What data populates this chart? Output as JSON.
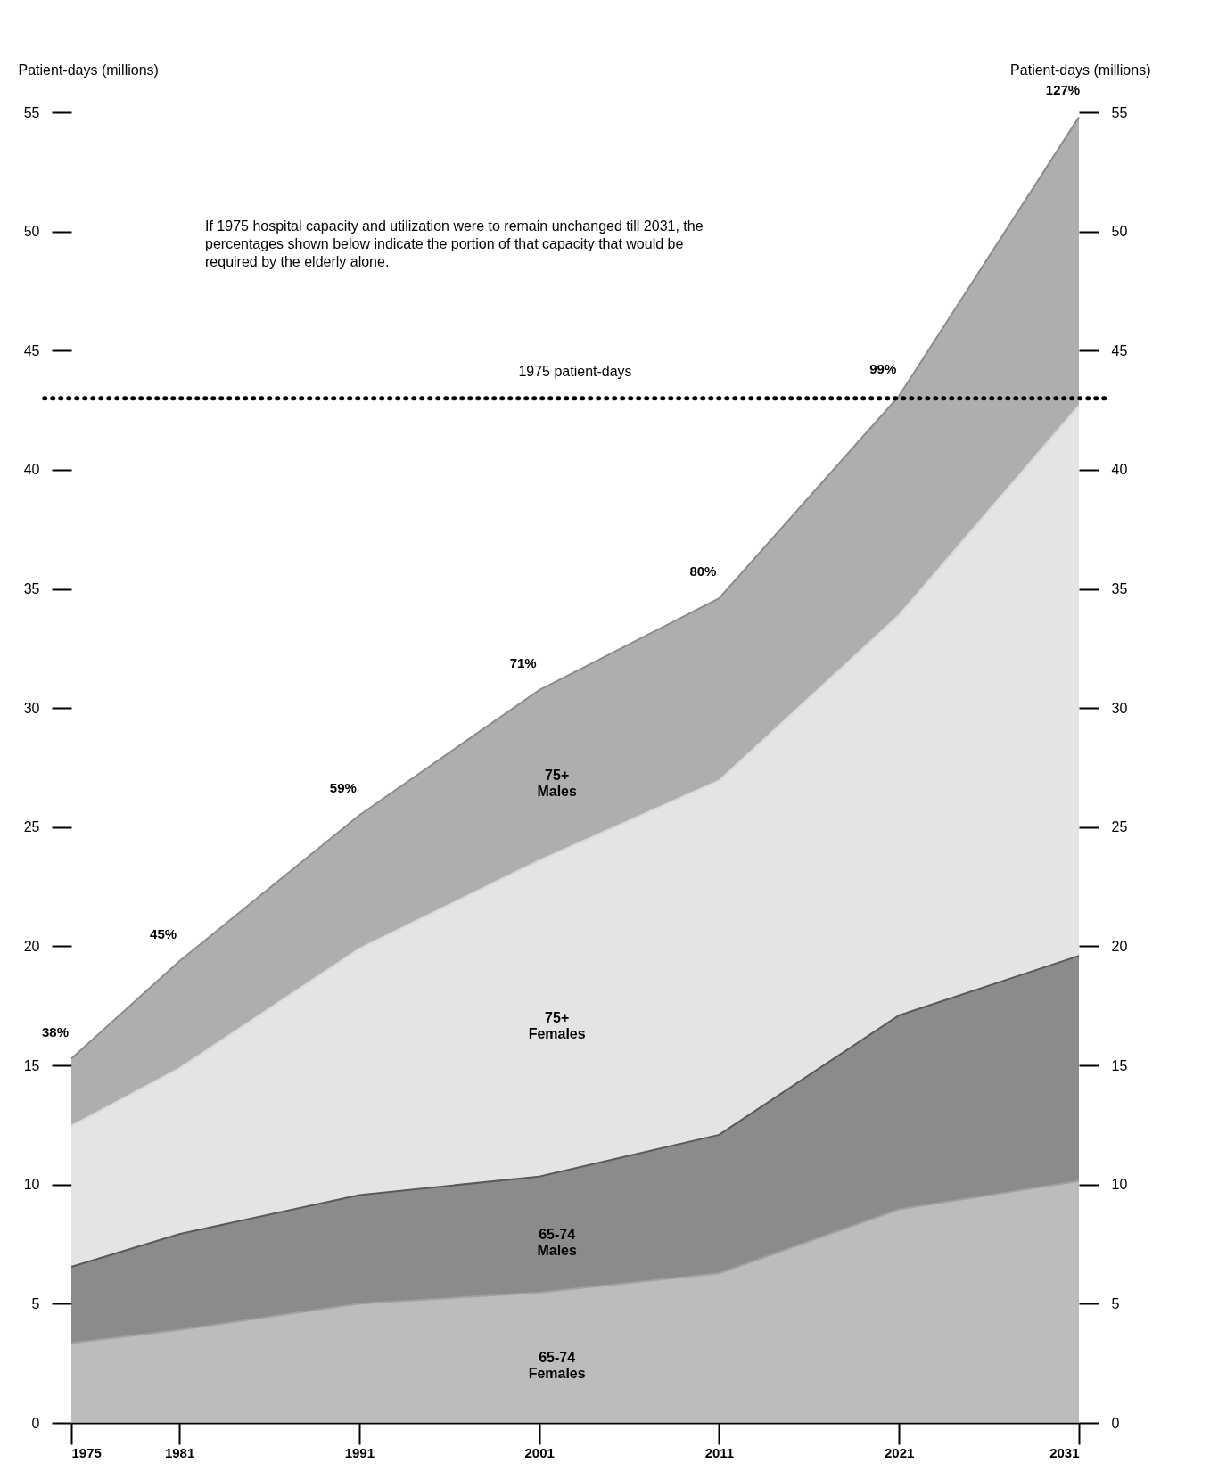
{
  "chart_data": {
    "type": "area",
    "stacked": true,
    "x": [
      1975,
      1981,
      1991,
      2001,
      2011,
      2021,
      2031
    ],
    "series": [
      {
        "name": "65-74 Females",
        "color": "#a0a0a0",
        "values": [
          3.35,
          3.9,
          5.0,
          5.47,
          6.28,
          8.96,
          10.15
        ]
      },
      {
        "name": "65-74 Males",
        "color": "#5a5a5a",
        "values": [
          3.2,
          4.02,
          4.56,
          4.87,
          5.81,
          8.14,
          9.45
        ]
      },
      {
        "name": "75+ Females",
        "color": "#d8d8d8",
        "values": [
          5.91,
          6.96,
          10.34,
          13.26,
          14.87,
          16.8,
          23.1
        ]
      },
      {
        "name": "75+ Males",
        "color": "#8c8c8c",
        "values": [
          2.82,
          4.49,
          5.6,
          7.15,
          7.64,
          9.2,
          12.1
        ]
      }
    ],
    "xlim": [
      1975,
      2031
    ],
    "xticks": [
      1975,
      1981,
      1991,
      2001,
      2011,
      2021,
      2031
    ],
    "ylim": [
      0,
      55
    ],
    "yticks": [
      0,
      5,
      10,
      15,
      20,
      25,
      30,
      35,
      40,
      45,
      50,
      55
    ],
    "y2lim": [
      0,
      55
    ],
    "y2ticks": [
      0,
      5,
      10,
      15,
      20,
      25,
      30,
      35,
      40,
      45,
      50,
      55
    ],
    "ylabel": "Patient-days (millions)",
    "y2label": "Patient-days (millions)",
    "ref_lines": [
      {
        "axis": "y",
        "value": 43,
        "label": "1975 patient-days",
        "line_style": "dotted"
      }
    ],
    "annotations": [
      "If 1975 hospital capacity and utilization were to remain unchanged till 2031, the percentages shown below indicate the portion of that capacity that would be required by the elderly alone.",
      {
        "text": "38%",
        "x": 1975,
        "y": 15.28
      },
      {
        "text": "45%",
        "x": 1981,
        "y": 19.37
      },
      {
        "text": "59%",
        "x": 1991,
        "y": 25.5
      },
      {
        "text": "71%",
        "x": 2001,
        "y": 30.75
      },
      {
        "text": "80%",
        "x": 2011,
        "y": 34.6
      },
      {
        "text": "99%",
        "x": 2021,
        "y": 43.1
      },
      {
        "text": "127%",
        "x": 2031,
        "y": 54.8
      }
    ],
    "grid": false,
    "legend": false
  }
}
